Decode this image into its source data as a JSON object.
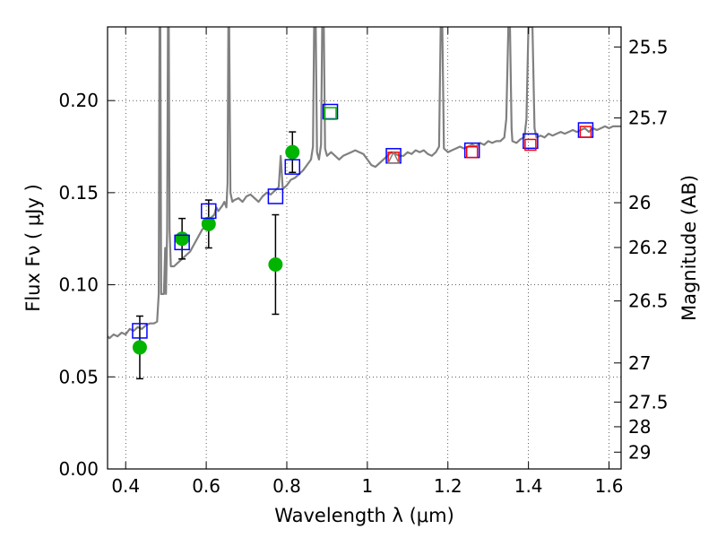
{
  "chart_data": {
    "type": "scatter",
    "title": "",
    "xlabel": "Wavelength  λ (μm)",
    "ylabel": "Flux  Fν  ( μJy )",
    "y2label": "Magnitude (AB)",
    "xlim": [
      0.355,
      1.63
    ],
    "ylim": [
      0.0,
      0.24
    ],
    "grid": true,
    "x_ticks": [
      {
        "value": 0.4,
        "label": "0.4"
      },
      {
        "value": 0.6,
        "label": "0.6"
      },
      {
        "value": 0.8,
        "label": "0.8"
      },
      {
        "value": 1.0,
        "label": "1"
      },
      {
        "value": 1.2,
        "label": "1.2"
      },
      {
        "value": 1.4,
        "label": "1.4"
      },
      {
        "value": 1.6,
        "label": "1.6"
      }
    ],
    "y_ticks": [
      {
        "value": 0.0,
        "label": "0.00"
      },
      {
        "value": 0.05,
        "label": "0.05"
      },
      {
        "value": 0.1,
        "label": "0.10"
      },
      {
        "value": 0.15,
        "label": "0.15"
      },
      {
        "value": 0.2,
        "label": "0.20"
      }
    ],
    "mag_ticks": [
      {
        "value": 25.5,
        "label": "25.5"
      },
      {
        "value": 25.7,
        "label": "25.7"
      },
      {
        "value": 26.0,
        "label": "26"
      },
      {
        "value": 26.2,
        "label": "26.2"
      },
      {
        "value": 26.5,
        "label": "26.5"
      },
      {
        "value": 27.0,
        "label": "27"
      },
      {
        "value": 27.5,
        "label": "27.5"
      },
      {
        "value": 28.0,
        "label": "28"
      },
      {
        "value": 29.0,
        "label": "29"
      }
    ],
    "series": [
      {
        "name": "model spectrum",
        "kind": "line",
        "color": "#808080",
        "points": [
          [
            0.355,
            0.072
          ],
          [
            0.36,
            0.071
          ],
          [
            0.37,
            0.073
          ],
          [
            0.38,
            0.072
          ],
          [
            0.39,
            0.074
          ],
          [
            0.4,
            0.073
          ],
          [
            0.41,
            0.076
          ],
          [
            0.42,
            0.075
          ],
          [
            0.43,
            0.077
          ],
          [
            0.44,
            0.076
          ],
          [
            0.45,
            0.078
          ],
          [
            0.46,
            0.079
          ],
          [
            0.47,
            0.079
          ],
          [
            0.478,
            0.08
          ],
          [
            0.482,
            0.095
          ],
          [
            0.484,
            0.24
          ],
          [
            0.486,
            0.24
          ],
          [
            0.488,
            0.095
          ],
          [
            0.49,
            0.095
          ],
          [
            0.495,
            0.095
          ],
          [
            0.498,
            0.12
          ],
          [
            0.5,
            0.095
          ],
          [
            0.503,
            0.13
          ],
          [
            0.505,
            0.24
          ],
          [
            0.507,
            0.24
          ],
          [
            0.509,
            0.13
          ],
          [
            0.512,
            0.11
          ],
          [
            0.52,
            0.11
          ],
          [
            0.53,
            0.112
          ],
          [
            0.54,
            0.114
          ],
          [
            0.55,
            0.116
          ],
          [
            0.56,
            0.118
          ],
          [
            0.57,
            0.122
          ],
          [
            0.58,
            0.126
          ],
          [
            0.59,
            0.13
          ],
          [
            0.6,
            0.132
          ],
          [
            0.61,
            0.136
          ],
          [
            0.62,
            0.138
          ],
          [
            0.625,
            0.142
          ],
          [
            0.63,
            0.14
          ],
          [
            0.64,
            0.143
          ],
          [
            0.645,
            0.145
          ],
          [
            0.65,
            0.142
          ],
          [
            0.653,
            0.155
          ],
          [
            0.655,
            0.24
          ],
          [
            0.657,
            0.24
          ],
          [
            0.66,
            0.15
          ],
          [
            0.665,
            0.145
          ],
          [
            0.67,
            0.146
          ],
          [
            0.68,
            0.147
          ],
          [
            0.69,
            0.145
          ],
          [
            0.7,
            0.148
          ],
          [
            0.71,
            0.149
          ],
          [
            0.72,
            0.147
          ],
          [
            0.73,
            0.145
          ],
          [
            0.74,
            0.148
          ],
          [
            0.75,
            0.15
          ],
          [
            0.76,
            0.149
          ],
          [
            0.77,
            0.151
          ],
          [
            0.78,
            0.153
          ],
          [
            0.785,
            0.17
          ],
          [
            0.79,
            0.152
          ],
          [
            0.8,
            0.154
          ],
          [
            0.81,
            0.157
          ],
          [
            0.82,
            0.158
          ],
          [
            0.83,
            0.16
          ],
          [
            0.84,
            0.162
          ],
          [
            0.85,
            0.165
          ],
          [
            0.86,
            0.168
          ],
          [
            0.865,
            0.175
          ],
          [
            0.868,
            0.24
          ],
          [
            0.872,
            0.24
          ],
          [
            0.875,
            0.172
          ],
          [
            0.88,
            0.168
          ],
          [
            0.885,
            0.176
          ],
          [
            0.888,
            0.24
          ],
          [
            0.892,
            0.24
          ],
          [
            0.895,
            0.174
          ],
          [
            0.9,
            0.17
          ],
          [
            0.91,
            0.172
          ],
          [
            0.92,
            0.17
          ],
          [
            0.93,
            0.168
          ],
          [
            0.94,
            0.17
          ],
          [
            0.95,
            0.171
          ],
          [
            0.96,
            0.172
          ],
          [
            0.97,
            0.173
          ],
          [
            0.98,
            0.172
          ],
          [
            0.99,
            0.171
          ],
          [
            1.0,
            0.168
          ],
          [
            1.01,
            0.165
          ],
          [
            1.02,
            0.164
          ],
          [
            1.03,
            0.166
          ],
          [
            1.04,
            0.168
          ],
          [
            1.05,
            0.17
          ],
          [
            1.06,
            0.172
          ],
          [
            1.07,
            0.171
          ],
          [
            1.08,
            0.17
          ],
          [
            1.09,
            0.17
          ],
          [
            1.1,
            0.172
          ],
          [
            1.11,
            0.171
          ],
          [
            1.12,
            0.173
          ],
          [
            1.13,
            0.172
          ],
          [
            1.14,
            0.173
          ],
          [
            1.15,
            0.171
          ],
          [
            1.16,
            0.17
          ],
          [
            1.17,
            0.172
          ],
          [
            1.178,
            0.175
          ],
          [
            1.182,
            0.24
          ],
          [
            1.186,
            0.24
          ],
          [
            1.19,
            0.174
          ],
          [
            1.2,
            0.172
          ],
          [
            1.21,
            0.173
          ],
          [
            1.22,
            0.174
          ],
          [
            1.23,
            0.175
          ],
          [
            1.24,
            0.174
          ],
          [
            1.25,
            0.175
          ],
          [
            1.26,
            0.176
          ],
          [
            1.27,
            0.175
          ],
          [
            1.28,
            0.177
          ],
          [
            1.29,
            0.176
          ],
          [
            1.3,
            0.178
          ],
          [
            1.31,
            0.177
          ],
          [
            1.32,
            0.178
          ],
          [
            1.33,
            0.178
          ],
          [
            1.34,
            0.18
          ],
          [
            1.345,
            0.19
          ],
          [
            1.35,
            0.24
          ],
          [
            1.354,
            0.24
          ],
          [
            1.358,
            0.185
          ],
          [
            1.36,
            0.178
          ],
          [
            1.37,
            0.177
          ],
          [
            1.38,
            0.179
          ],
          [
            1.39,
            0.18
          ],
          [
            1.395,
            0.19
          ],
          [
            1.4,
            0.24
          ],
          [
            1.41,
            0.24
          ],
          [
            1.415,
            0.185
          ],
          [
            1.42,
            0.18
          ],
          [
            1.43,
            0.181
          ],
          [
            1.44,
            0.18
          ],
          [
            1.45,
            0.182
          ],
          [
            1.46,
            0.181
          ],
          [
            1.47,
            0.182
          ],
          [
            1.48,
            0.183
          ],
          [
            1.49,
            0.182
          ],
          [
            1.5,
            0.183
          ],
          [
            1.51,
            0.184
          ],
          [
            1.52,
            0.183
          ],
          [
            1.53,
            0.184
          ],
          [
            1.54,
            0.185
          ],
          [
            1.55,
            0.183
          ],
          [
            1.56,
            0.185
          ],
          [
            1.57,
            0.184
          ],
          [
            1.58,
            0.185
          ],
          [
            1.59,
            0.186
          ],
          [
            1.6,
            0.185
          ],
          [
            1.61,
            0.186
          ],
          [
            1.62,
            0.186
          ],
          [
            1.63,
            0.186
          ]
        ]
      },
      {
        "name": "observed photometry",
        "kind": "points",
        "color": "#00b400",
        "points": [
          {
            "x": 0.435,
            "y": 0.066,
            "yerr": 0.017
          },
          {
            "x": 0.54,
            "y": 0.125,
            "yerr": 0.011
          },
          {
            "x": 0.606,
            "y": 0.133,
            "yerr": 0.013
          },
          {
            "x": 0.772,
            "y": 0.111,
            "yerr": 0.027
          },
          {
            "x": 0.814,
            "y": 0.172,
            "yerr": 0.011
          }
        ]
      },
      {
        "name": "model photometry (blue squares)",
        "kind": "open-squares",
        "color": "#0000ff",
        "points": [
          {
            "x": 0.435,
            "y": 0.075
          },
          {
            "x": 0.54,
            "y": 0.123
          },
          {
            "x": 0.606,
            "y": 0.14
          },
          {
            "x": 0.772,
            "y": 0.148
          },
          {
            "x": 0.814,
            "y": 0.164
          },
          {
            "x": 0.908,
            "y": 0.194
          },
          {
            "x": 1.065,
            "y": 0.17
          },
          {
            "x": 1.26,
            "y": 0.173
          },
          {
            "x": 1.405,
            "y": 0.178
          },
          {
            "x": 1.542,
            "y": 0.184
          }
        ]
      },
      {
        "name": "near-IR photometry (red squares)",
        "kind": "open-squares",
        "color": "#ff0000",
        "points": [
          {
            "x": 1.065,
            "y": 0.169
          },
          {
            "x": 1.26,
            "y": 0.172
          },
          {
            "x": 1.405,
            "y": 0.176
          },
          {
            "x": 1.542,
            "y": 0.183
          }
        ]
      },
      {
        "name": "green square",
        "kind": "open-squares",
        "color": "#00b400",
        "points": [
          {
            "x": 0.908,
            "y": 0.193
          }
        ]
      },
      {
        "name": "grey triangle",
        "kind": "triangle",
        "color": "#808080",
        "points": [
          {
            "x": 1.065,
            "y": 0.169
          }
        ]
      }
    ]
  }
}
